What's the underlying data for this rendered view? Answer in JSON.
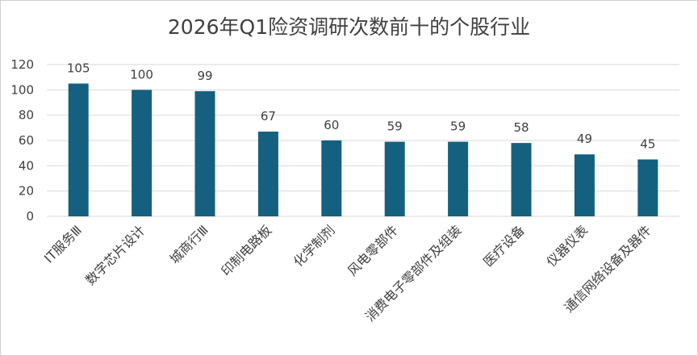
{
  "chart_data": {
    "type": "bar",
    "title": "2026年Q1险资调研次数前十的个股行业",
    "xlabel": "",
    "ylabel": "",
    "ylim": [
      0,
      120
    ],
    "yticks": [
      0,
      20,
      40,
      60,
      80,
      100,
      120
    ],
    "grid": true,
    "legend": "none",
    "categories": [
      "IT服务Ⅲ",
      "数字芯片设计",
      "城商行Ⅲ",
      "印制电路板",
      "化学制剂",
      "风电零部件",
      "消费电子零部件及组装",
      "医疗设备",
      "仪器仪表",
      "通信网络设备及器件"
    ],
    "values": [
      105,
      100,
      99,
      67,
      60,
      59,
      59,
      58,
      49,
      45
    ],
    "bar_color": "#15607f",
    "grid_color": "#d9d9d9"
  }
}
